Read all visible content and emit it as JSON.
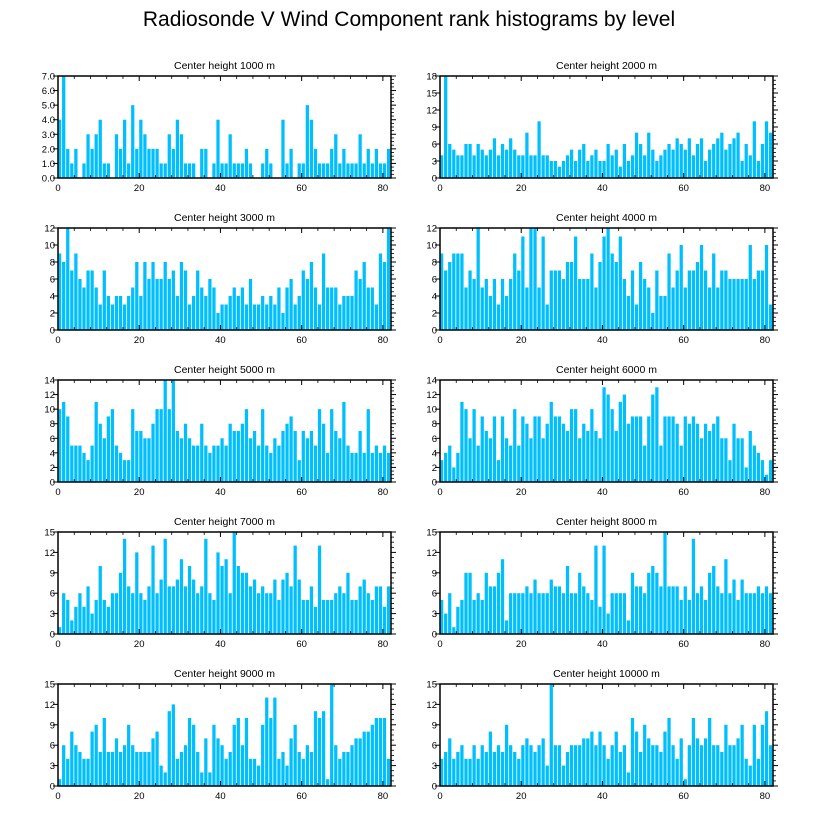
{
  "page_title": "Radiosonde V Wind Component rank histograms by level",
  "bar_color": "#00bfff",
  "chart_data": [
    {
      "type": "bar",
      "title": "Center height 1000 m",
      "xlim": [
        0,
        82
      ],
      "ylim": [
        0,
        7
      ],
      "xticks": [
        0,
        20,
        40,
        60,
        80
      ],
      "yticks": [
        "0.0",
        "1.0",
        "2.0",
        "3.0",
        "4.0",
        "5.0",
        "6.0",
        "7.0"
      ],
      "yticks_values": [
        0,
        1,
        2,
        3,
        4,
        5,
        6,
        7
      ],
      "values": [
        4,
        7,
        2,
        1,
        2,
        0,
        1,
        3,
        2,
        3,
        4,
        1,
        1,
        0,
        3,
        2,
        4,
        1,
        5,
        2,
        4,
        3,
        2,
        2,
        2,
        1,
        1,
        3,
        2,
        4,
        3,
        1,
        1,
        1,
        0,
        2,
        2,
        0,
        1,
        4,
        1,
        1,
        3,
        1,
        1,
        1,
        2,
        1,
        0,
        0,
        1,
        2,
        1,
        0,
        0,
        4,
        1,
        2,
        0,
        1,
        1,
        5,
        4,
        2,
        1,
        1,
        1,
        2,
        3,
        1,
        2,
        1,
        1,
        1,
        3,
        1,
        2,
        1,
        2,
        1,
        1,
        2
      ]
    },
    {
      "type": "bar",
      "title": "Center height 2000 m",
      "xlim": [
        0,
        82
      ],
      "ylim": [
        0,
        18
      ],
      "xticks": [
        0,
        20,
        40,
        60,
        80
      ],
      "yticks": [
        "0",
        "3",
        "6",
        "9",
        "12",
        "15",
        "18"
      ],
      "yticks_values": [
        0,
        3,
        6,
        9,
        12,
        15,
        18
      ],
      "values": [
        4,
        18,
        6,
        5,
        4,
        4,
        6,
        6,
        4,
        6,
        5,
        4,
        5,
        7,
        4,
        6,
        5,
        7,
        5,
        4,
        4,
        8,
        4,
        4,
        10,
        4,
        4,
        3,
        3,
        2,
        3,
        4,
        5,
        3,
        5,
        6,
        3,
        4,
        5,
        3,
        3,
        6,
        4,
        5,
        2,
        6,
        3,
        4,
        8,
        6,
        4,
        8,
        5,
        3,
        4,
        5,
        6,
        5,
        7,
        6,
        5,
        7,
        4,
        6,
        7,
        3,
        5,
        6,
        7,
        8,
        5,
        6,
        7,
        8,
        3,
        6,
        4,
        10,
        3,
        6,
        10,
        8
      ]
    },
    {
      "type": "bar",
      "title": "Center height 3000 m",
      "xlim": [
        0,
        82
      ],
      "ylim": [
        0,
        12
      ],
      "xticks": [
        0,
        20,
        40,
        60,
        80
      ],
      "yticks": [
        "0",
        "2",
        "4",
        "6",
        "8",
        "10",
        "12"
      ],
      "yticks_values": [
        0,
        2,
        4,
        6,
        8,
        10,
        12
      ],
      "values": [
        9,
        8,
        12,
        7,
        9,
        6,
        5,
        7,
        7,
        5,
        3,
        7,
        4,
        3,
        4,
        4,
        3,
        4,
        5,
        8,
        4,
        8,
        6,
        8,
        6,
        6,
        8,
        6,
        7,
        4,
        8,
        7,
        3,
        4,
        7,
        5,
        4,
        6,
        5,
        2,
        3,
        3,
        4,
        5,
        4,
        5,
        3,
        6,
        3,
        3,
        4,
        3,
        4,
        3,
        5,
        2,
        5,
        6,
        3,
        4,
        7,
        6,
        8,
        5,
        3,
        9,
        5,
        5,
        5,
        3,
        4,
        4,
        4,
        7,
        6,
        8,
        5,
        5,
        3,
        9,
        8,
        12
      ]
    },
    {
      "type": "bar",
      "title": "Center height 4000 m",
      "xlim": [
        0,
        82
      ],
      "ylim": [
        0,
        12
      ],
      "xticks": [
        0,
        20,
        40,
        60,
        80
      ],
      "yticks": [
        "0",
        "2",
        "4",
        "6",
        "8",
        "10",
        "12"
      ],
      "yticks_values": [
        0,
        2,
        4,
        6,
        8,
        10,
        12
      ],
      "values": [
        9,
        7,
        8,
        9,
        9,
        9,
        5,
        7,
        6,
        12,
        5,
        6,
        4,
        6,
        3,
        6,
        4,
        6,
        9,
        7,
        11,
        5,
        12,
        12,
        5,
        11,
        3,
        7,
        7,
        7,
        6,
        8,
        8,
        11,
        6,
        6,
        6,
        9,
        5,
        8,
        11,
        12,
        9,
        8,
        11,
        6,
        4,
        7,
        3,
        8,
        6,
        5,
        2,
        7,
        4,
        4,
        9,
        5,
        7,
        10,
        5,
        7,
        7,
        8,
        10,
        7,
        5,
        9,
        5,
        7,
        7,
        6,
        6,
        6,
        6,
        6,
        10,
        6,
        7,
        7,
        10,
        3
      ]
    },
    {
      "type": "bar",
      "title": "Center height 5000 m",
      "xlim": [
        0,
        82
      ],
      "ylim": [
        0,
        14
      ],
      "xticks": [
        0,
        20,
        40,
        60,
        80
      ],
      "yticks": [
        "0",
        "2",
        "4",
        "6",
        "8",
        "10",
        "12",
        "14"
      ],
      "yticks_values": [
        0,
        2,
        4,
        6,
        8,
        10,
        12,
        14
      ],
      "values": [
        10,
        11,
        9,
        5,
        5,
        5,
        4,
        3,
        5,
        11,
        8,
        6,
        9,
        10,
        5,
        4,
        3,
        3,
        10,
        7,
        7,
        6,
        6,
        8,
        10,
        10,
        14,
        10,
        14,
        7,
        6,
        8,
        6,
        5,
        5,
        8,
        5,
        4,
        5,
        5,
        6,
        5,
        8,
        7,
        7,
        8,
        10,
        6,
        7,
        5,
        10,
        5,
        4,
        6,
        5,
        7,
        8,
        9,
        7,
        3,
        7,
        6,
        7,
        5,
        10,
        8,
        4,
        10,
        7,
        6,
        11,
        5,
        4,
        4,
        7,
        4,
        10,
        4,
        5,
        4,
        5,
        4
      ]
    },
    {
      "type": "bar",
      "title": "Center height 6000 m",
      "xlim": [
        0,
        82
      ],
      "ylim": [
        0,
        14
      ],
      "xticks": [
        0,
        20,
        40,
        60,
        80
      ],
      "yticks": [
        "0",
        "2",
        "4",
        "6",
        "8",
        "10",
        "12",
        "14"
      ],
      "yticks_values": [
        0,
        2,
        4,
        6,
        8,
        10,
        12,
        14
      ],
      "values": [
        3,
        4,
        5,
        2,
        4,
        11,
        10,
        6,
        10,
        5,
        9,
        7,
        6,
        9,
        3,
        9,
        6,
        5,
        10,
        5,
        9,
        8,
        6,
        9,
        9,
        6,
        8,
        11,
        9,
        9,
        8,
        7,
        10,
        10,
        6,
        8,
        7,
        10,
        7,
        6,
        13,
        12,
        10,
        7,
        11,
        12,
        8,
        9,
        9,
        9,
        5,
        9,
        12,
        13,
        5,
        9,
        9,
        9,
        8,
        5,
        9,
        8,
        9,
        8,
        6,
        8,
        7,
        8,
        9,
        6,
        6,
        3,
        8,
        6,
        6,
        2,
        7,
        5,
        4,
        3,
        1,
        3
      ]
    },
    {
      "type": "bar",
      "title": "Center height 7000 m",
      "xlim": [
        0,
        82
      ],
      "ylim": [
        0,
        15
      ],
      "xticks": [
        0,
        20,
        40,
        60,
        80
      ],
      "yticks": [
        "0",
        "3",
        "6",
        "9",
        "12",
        "15"
      ],
      "yticks_values": [
        0,
        3,
        6,
        9,
        12,
        15
      ],
      "values": [
        1,
        6,
        5,
        2,
        4,
        6,
        4,
        7,
        3,
        5,
        10,
        5,
        4,
        6,
        6,
        9,
        14,
        7,
        6,
        12,
        6,
        5,
        7,
        13,
        6,
        8,
        14,
        7,
        7,
        8,
        11,
        7,
        10,
        8,
        6,
        7,
        14,
        6,
        5,
        12,
        10,
        11,
        6,
        15,
        10,
        9,
        9,
        7,
        8,
        6,
        7,
        6,
        6,
        8,
        5,
        8,
        9,
        7,
        13,
        8,
        5,
        5,
        7,
        4,
        13,
        5,
        5,
        5,
        6,
        7,
        6,
        9,
        5,
        5,
        7,
        8,
        6,
        5,
        7,
        7,
        4,
        7
      ]
    },
    {
      "type": "bar",
      "title": "Center height 8000 m",
      "xlim": [
        0,
        82
      ],
      "ylim": [
        0,
        15
      ],
      "xticks": [
        0,
        20,
        40,
        60,
        80
      ],
      "yticks": [
        "0",
        "3",
        "6",
        "9",
        "12",
        "15"
      ],
      "yticks_values": [
        0,
        3,
        6,
        9,
        12,
        15
      ],
      "values": [
        5,
        3,
        6,
        1,
        4,
        5,
        9,
        9,
        5,
        6,
        5,
        9,
        7,
        7,
        9,
        11,
        2,
        6,
        6,
        6,
        6,
        7,
        6,
        8,
        6,
        6,
        6,
        8,
        7,
        7,
        6,
        10,
        6,
        6,
        9,
        7,
        6,
        5,
        13,
        4,
        13,
        3,
        6,
        6,
        6,
        6,
        2,
        9,
        7,
        7,
        6,
        9,
        10,
        9,
        7,
        15,
        7,
        7,
        7,
        5,
        7,
        5,
        14,
        6,
        7,
        5,
        9,
        10,
        7,
        6,
        11,
        6,
        8,
        5,
        8,
        6,
        6,
        6,
        7,
        6,
        7,
        6
      ]
    },
    {
      "type": "bar",
      "title": "Center height 9000 m",
      "xlim": [
        0,
        82
      ],
      "ylim": [
        0,
        15
      ],
      "xticks": [
        0,
        20,
        40,
        60,
        80
      ],
      "yticks": [
        "0",
        "3",
        "6",
        "9",
        "12",
        "15"
      ],
      "yticks_values": [
        0,
        3,
        6,
        9,
        12,
        15
      ],
      "values": [
        1,
        6,
        4,
        8,
        6,
        5,
        4,
        4,
        8,
        9,
        5,
        10,
        5,
        5,
        7,
        5,
        6,
        9,
        6,
        5,
        5,
        5,
        5,
        7,
        8,
        3,
        2,
        11,
        12,
        4,
        5,
        6,
        10,
        9,
        5,
        2,
        7,
        2,
        9,
        7,
        6,
        4,
        5,
        9,
        10,
        6,
        10,
        4,
        4,
        3,
        9,
        13,
        10,
        13,
        4,
        5,
        3,
        7,
        9,
        5,
        4,
        6,
        5,
        11,
        10,
        11,
        1,
        15,
        6,
        4,
        5,
        5,
        6,
        7,
        7,
        8,
        8,
        9,
        10,
        10,
        10,
        4
      ]
    },
    {
      "type": "bar",
      "title": "Center height 10000 m",
      "xlim": [
        0,
        82
      ],
      "ylim": [
        0,
        15
      ],
      "xticks": [
        0,
        20,
        40,
        60,
        80
      ],
      "yticks": [
        "0",
        "3",
        "6",
        "9",
        "12",
        "15"
      ],
      "yticks_values": [
        0,
        3,
        6,
        9,
        12,
        15
      ],
      "values": [
        4,
        5,
        7,
        4,
        5,
        6,
        4,
        4,
        6,
        4,
        6,
        5,
        8,
        5,
        6,
        5,
        9,
        6,
        5,
        4,
        6,
        7,
        6,
        5,
        6,
        7,
        3,
        15,
        6,
        6,
        3,
        5,
        6,
        6,
        6,
        7,
        7,
        8,
        6,
        8,
        6,
        4,
        6,
        8,
        5,
        6,
        2,
        10,
        8,
        5,
        9,
        7,
        6,
        6,
        5,
        8,
        10,
        6,
        4,
        7,
        1,
        6,
        10,
        7,
        6,
        7,
        10,
        6,
        6,
        5,
        9,
        6,
        6,
        7,
        9,
        4,
        3,
        9,
        4,
        9,
        11,
        6
      ]
    }
  ]
}
